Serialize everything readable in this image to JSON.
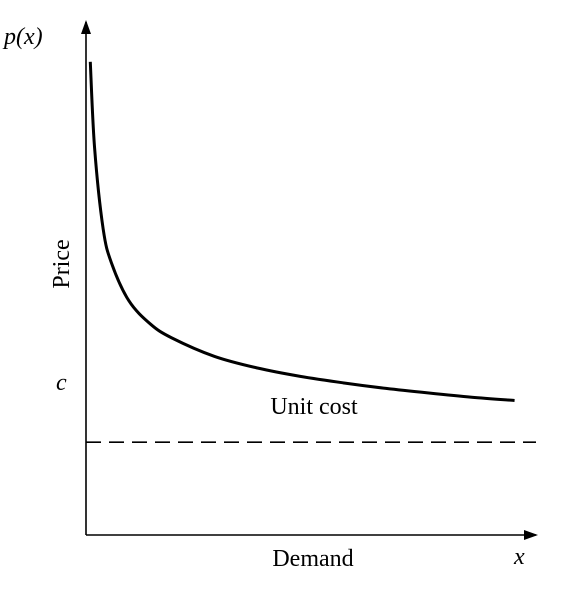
{
  "chart_data": {
    "type": "line",
    "title": "",
    "xlabel": "Demand",
    "ylabel": "Price",
    "x_axis_symbol": "x",
    "y_axis_symbol": "p(x)",
    "cost_label": "c",
    "cost_line_label": "Unit cost",
    "grid": false,
    "series": [
      {
        "values": [
          {
            "x": 0.01,
            "y": 10.2
          },
          {
            "x": 0.02,
            "y": 8.35
          },
          {
            "x": 0.04,
            "y": 6.6
          },
          {
            "x": 0.06,
            "y": 5.85
          },
          {
            "x": 0.1,
            "y": 5.05
          },
          {
            "x": 0.15,
            "y": 4.55
          },
          {
            "x": 0.2,
            "y": 4.25
          },
          {
            "x": 0.3,
            "y": 3.85
          },
          {
            "x": 0.4,
            "y": 3.6
          },
          {
            "x": 0.5,
            "y": 3.42
          },
          {
            "x": 0.6,
            "y": 3.28
          },
          {
            "x": 0.7,
            "y": 3.16
          },
          {
            "x": 0.8,
            "y": 3.06
          },
          {
            "x": 0.9,
            "y": 2.97
          },
          {
            "x": 1.0,
            "y": 2.9
          }
        ]
      }
    ],
    "cost_value": 2.0,
    "xlim": [
      0,
      1.05
    ],
    "ylim": [
      0,
      10.8
    ]
  }
}
